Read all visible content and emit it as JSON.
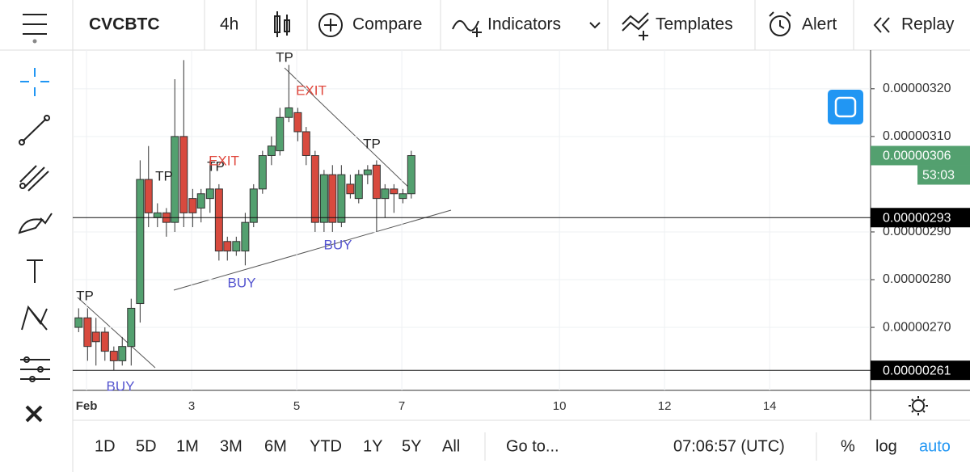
{
  "toolbar": {
    "symbol": "CVCBTC",
    "interval": "4h",
    "buttons": [
      "Compare",
      "Indicators",
      "Templates",
      "Alert",
      "Replay"
    ]
  },
  "bottom_bar": {
    "ranges": [
      "1D",
      "5D",
      "1M",
      "3M",
      "6M",
      "YTD",
      "1Y",
      "5Y",
      "All"
    ],
    "goto": "Go to...",
    "time": "07:06:57 (UTC)",
    "options": [
      "%",
      "log",
      "auto"
    ]
  },
  "chart_data": {
    "type": "candlestick",
    "x": [
      0.85,
      1.02,
      1.18,
      1.35,
      1.52,
      1.68,
      1.85,
      2.02,
      2.18,
      2.35,
      2.52,
      2.68,
      2.85,
      3.02,
      3.18,
      3.35,
      3.52,
      3.68,
      3.85,
      4.02,
      4.18,
      4.35,
      4.52,
      4.68,
      4.85,
      5.02,
      5.18,
      5.35,
      5.52,
      5.68,
      5.85,
      6.02,
      6.18,
      6.35,
      6.52,
      6.68,
      6.85,
      7.02,
      7.18
    ],
    "open": [
      2.7e-06,
      2.72e-06,
      2.69e-06,
      2.69e-06,
      2.65e-06,
      2.63e-06,
      2.66e-06,
      2.75e-06,
      3.01e-06,
      2.93e-06,
      2.94e-06,
      2.92e-06,
      3.1e-06,
      2.97e-06,
      2.95e-06,
      2.97e-06,
      2.99e-06,
      2.88e-06,
      2.86e-06,
      2.86e-06,
      2.92e-06,
      2.99e-06,
      3.06e-06,
      3.07e-06,
      3.14e-06,
      3.15e-06,
      3.11e-06,
      3.06e-06,
      2.92e-06,
      3.02e-06,
      2.92e-06,
      3e-06,
      2.97e-06,
      3.02e-06,
      3.04e-06,
      2.97e-06,
      2.99e-06,
      2.97e-06,
      2.98e-06
    ],
    "high": [
      2.74e-06,
      2.74e-06,
      2.72e-06,
      2.7e-06,
      2.66e-06,
      2.68e-06,
      2.76e-06,
      3.05e-06,
      3.08e-06,
      2.96e-06,
      2.95e-06,
      3.22e-06,
      3.26e-06,
      2.99e-06,
      2.99e-06,
      3.05e-06,
      3e-06,
      2.89e-06,
      2.89e-06,
      2.94e-06,
      3e-06,
      3.07e-06,
      3.1e-06,
      3.16e-06,
      3.25e-06,
      3.16e-06,
      3.12e-06,
      3.07e-06,
      3.03e-06,
      3.04e-06,
      3.04e-06,
      3.02e-06,
      3.03e-06,
      3.04e-06,
      3.05e-06,
      3e-06,
      3e-06,
      2.99e-06,
      3.07e-06
    ],
    "low": [
      2.69e-06,
      2.63e-06,
      2.62e-06,
      2.63e-06,
      2.61e-06,
      2.62e-06,
      2.62e-06,
      2.71e-06,
      2.91e-06,
      2.91e-06,
      2.89e-06,
      2.9e-06,
      2.91e-06,
      2.91e-06,
      2.92e-06,
      2.94e-06,
      2.84e-06,
      2.84e-06,
      2.85e-06,
      2.83e-06,
      2.91e-06,
      2.98e-06,
      3.04e-06,
      3.06e-06,
      3.13e-06,
      3.09e-06,
      3.04e-06,
      2.9e-06,
      2.9e-06,
      2.9e-06,
      2.91e-06,
      2.97e-06,
      2.96e-06,
      3e-06,
      2.9e-06,
      2.93e-06,
      2.94e-06,
      2.96e-06,
      2.97e-06
    ],
    "close": [
      2.72e-06,
      2.66e-06,
      2.67e-06,
      2.65e-06,
      2.63e-06,
      2.66e-06,
      2.74e-06,
      3.01e-06,
      2.94e-06,
      2.94e-06,
      2.92e-06,
      3.1e-06,
      2.94e-06,
      2.94e-06,
      2.98e-06,
      2.99e-06,
      2.86e-06,
      2.86e-06,
      2.88e-06,
      2.92e-06,
      2.99e-06,
      3.06e-06,
      3.08e-06,
      3.14e-06,
      3.16e-06,
      3.11e-06,
      3.06e-06,
      2.92e-06,
      3.02e-06,
      2.92e-06,
      3.02e-06,
      2.98e-06,
      3.02e-06,
      3.03e-06,
      2.97e-06,
      2.99e-06,
      2.98e-06,
      2.98e-06,
      3.06e-06
    ],
    "up_color": "#53a06f",
    "down_color": "#d84a3e",
    "xlim": [
      0.738,
      15.92
    ],
    "xticks": [
      {
        "value": 1,
        "label": "Feb"
      },
      3,
      5,
      7,
      10,
      12,
      14
    ],
    "ylim": [
      2.568e-06,
      3.281e-06
    ],
    "yticks": [
      {
        "value": 3.2e-06,
        "label": "0.00000320"
      },
      {
        "value": 3.1e-06,
        "label": "0.00000310"
      },
      {
        "value": 2.9e-06,
        "label": "0.00000290"
      },
      {
        "value": 2.8e-06,
        "label": "0.00000280"
      },
      {
        "value": 2.7e-06,
        "label": "0.00000270"
      }
    ],
    "grid": true,
    "lines": [
      2.93e-06,
      2.61e-06
    ],
    "last_price": 3.06e-06,
    "countdown": "53:03",
    "annotations": [
      {
        "text": "TP",
        "color": "#222"
      },
      {
        "text": "TP",
        "color": "#222"
      },
      {
        "text": "TP",
        "color": "#222"
      },
      {
        "text": "TP",
        "color": "#222"
      },
      {
        "text": "TP",
        "color": "#222"
      },
      {
        "text": "EXIT",
        "color": "#e0473c"
      },
      {
        "text": "EXIT",
        "color": "#e0473c"
      },
      {
        "text": "BUY",
        "color": "#5656d0"
      },
      {
        "text": "BUY",
        "color": "#5656d0"
      },
      {
        "text": "BUY",
        "color": "#5656d0"
      }
    ]
  }
}
